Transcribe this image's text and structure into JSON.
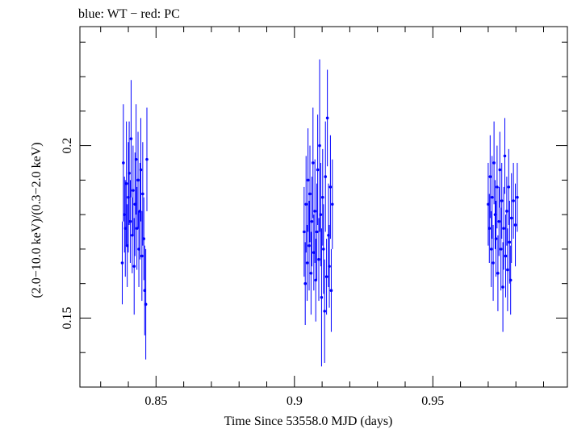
{
  "chart_data": {
    "type": "scatter",
    "title": "blue: WT − red: PC",
    "xlabel": "Time Since 53558.0 MJD (days)",
    "ylabel": "(2.0−10.0 keV)/(0.3−2.0 keV)",
    "xlim": [
      0.8225,
      0.9986
    ],
    "ylim": [
      0.13,
      0.2345
    ],
    "x_ticks": [
      0.85,
      0.9,
      0.95
    ],
    "x_tick_labels": [
      "0.85",
      "0.9",
      "0.95"
    ],
    "y_ticks": [
      0.15,
      0.2
    ],
    "y_tick_labels": [
      "0.15",
      "0.2"
    ],
    "grid": false,
    "series": [
      {
        "color": "#0000ff",
        "marker": "dot-with-errorbars",
        "x": [
          0.8378,
          0.8382,
          0.8386,
          0.8389,
          0.8393,
          0.8396,
          0.84,
          0.8403,
          0.8407,
          0.841,
          0.8414,
          0.8417,
          0.8421,
          0.8424,
          0.8428,
          0.8431,
          0.8435,
          0.8438,
          0.8442,
          0.8445,
          0.8449,
          0.8452,
          0.8456,
          0.8459,
          0.8463,
          0.8467,
          0.9035,
          0.9039,
          0.9042,
          0.9046,
          0.9049,
          0.9053,
          0.9056,
          0.906,
          0.9063,
          0.9067,
          0.907,
          0.9074,
          0.9077,
          0.9081,
          0.9084,
          0.9088,
          0.9091,
          0.9095,
          0.9098,
          0.9102,
          0.9105,
          0.9109,
          0.9112,
          0.9116,
          0.9119,
          0.9123,
          0.9126,
          0.913,
          0.9133,
          0.9137,
          0.97,
          0.9704,
          0.9707,
          0.9711,
          0.9714,
          0.9718,
          0.9721,
          0.9725,
          0.9728,
          0.9732,
          0.9735,
          0.9739,
          0.9742,
          0.9746,
          0.9749,
          0.9753,
          0.9756,
          0.976,
          0.9763,
          0.9767,
          0.977,
          0.9774,
          0.9777,
          0.9781,
          0.9784,
          0.9791,
          0.9798,
          0.9805
        ],
        "y": [
          0.166,
          0.195,
          0.18,
          0.176,
          0.189,
          0.171,
          0.185,
          0.192,
          0.178,
          0.202,
          0.174,
          0.187,
          0.165,
          0.183,
          0.196,
          0.176,
          0.19,
          0.17,
          0.181,
          0.193,
          0.168,
          0.186,
          0.173,
          0.158,
          0.154,
          0.196,
          0.175,
          0.16,
          0.183,
          0.166,
          0.19,
          0.171,
          0.186,
          0.163,
          0.178,
          0.195,
          0.169,
          0.181,
          0.161,
          0.175,
          0.193,
          0.167,
          0.2,
          0.18,
          0.156,
          0.185,
          0.17,
          0.152,
          0.191,
          0.162,
          0.208,
          0.174,
          0.165,
          0.188,
          0.158,
          0.183,
          0.183,
          0.176,
          0.191,
          0.17,
          0.185,
          0.166,
          0.195,
          0.18,
          0.173,
          0.188,
          0.163,
          0.178,
          0.193,
          0.17,
          0.184,
          0.159,
          0.176,
          0.197,
          0.168,
          0.181,
          0.164,
          0.188,
          0.172,
          0.161,
          0.179,
          0.184,
          0.177,
          0.185
        ],
        "yerr": [
          0.012,
          0.017,
          0.011,
          0.014,
          0.018,
          0.012,
          0.016,
          0.015,
          0.012,
          0.017,
          0.011,
          0.013,
          0.014,
          0.015,
          0.016,
          0.012,
          0.014,
          0.011,
          0.014,
          0.015,
          0.013,
          0.015,
          0.012,
          0.013,
          0.016,
          0.015,
          0.013,
          0.012,
          0.014,
          0.011,
          0.015,
          0.013,
          0.014,
          0.012,
          0.013,
          0.016,
          0.011,
          0.015,
          0.012,
          0.014,
          0.016,
          0.012,
          0.025,
          0.015,
          0.02,
          0.014,
          0.013,
          0.015,
          0.016,
          0.011,
          0.014,
          0.015,
          0.012,
          0.015,
          0.012,
          0.013,
          0.012,
          0.01,
          0.012,
          0.011,
          0.012,
          0.011,
          0.012,
          0.01,
          0.011,
          0.012,
          0.011,
          0.01,
          0.011,
          0.012,
          0.011,
          0.013,
          0.012,
          0.011,
          0.012,
          0.01,
          0.012,
          0.011,
          0.012,
          0.01,
          0.013,
          0.011,
          0.012,
          0.01
        ]
      }
    ]
  }
}
